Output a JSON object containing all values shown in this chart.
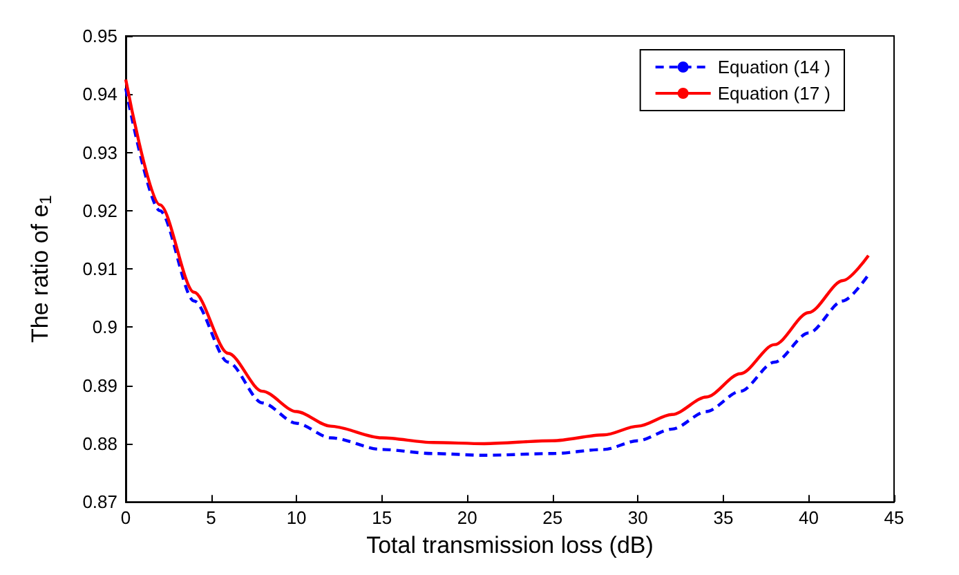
{
  "chart_data": {
    "type": "line",
    "xlabel": "Total transmission loss (dB)",
    "ylabel": "The ratio of e$_{1}$",
    "xlim": [
      0,
      45
    ],
    "xticks": [
      0,
      5,
      10,
      15,
      20,
      25,
      30,
      35,
      40,
      45
    ],
    "ylim": [
      0.87,
      0.95
    ],
    "yticks": [
      0.87,
      0.88,
      0.89,
      0.9,
      0.91,
      0.92,
      0.93,
      0.94,
      0.95
    ],
    "grid": false,
    "legend": "top right",
    "marker": "none",
    "x": [
      0,
      2,
      4,
      6,
      8,
      10,
      12,
      15,
      18,
      21,
      25,
      28,
      30,
      32,
      34,
      36,
      38,
      40,
      42,
      43.5
    ],
    "series": [
      {
        "name": "Equation (14 )",
        "color": "#0000ff",
        "line_style": "dashed",
        "values": [
          0.941,
          0.92,
          0.9045,
          0.894,
          0.887,
          0.8835,
          0.881,
          0.879,
          0.8783,
          0.878,
          0.8783,
          0.879,
          0.8805,
          0.8825,
          0.8855,
          0.889,
          0.894,
          0.899,
          0.9045,
          0.909
        ]
      },
      {
        "name": "Equation (17 )",
        "color": "#ff0000",
        "line_style": "solid",
        "values": [
          0.9425,
          0.921,
          0.906,
          0.8955,
          0.889,
          0.8855,
          0.883,
          0.881,
          0.8802,
          0.88,
          0.8805,
          0.8815,
          0.883,
          0.885,
          0.888,
          0.892,
          0.897,
          0.9025,
          0.908,
          0.9123
        ]
      }
    ]
  }
}
